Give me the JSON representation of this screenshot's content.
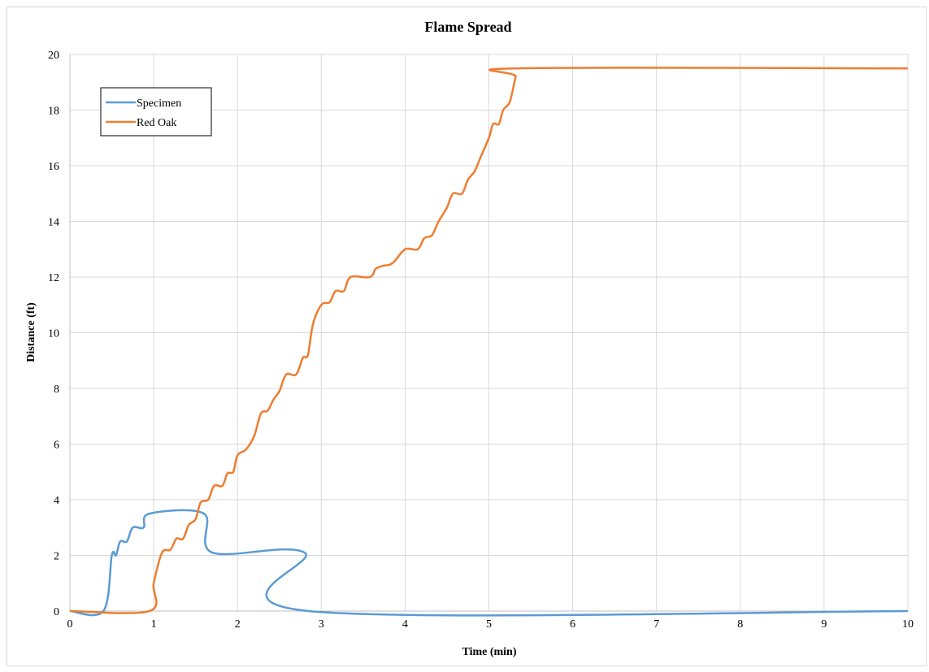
{
  "chart_data": {
    "type": "line",
    "title": "Flame Spread",
    "xlabel": "Time (min)",
    "ylabel": "Distance (ft)",
    "xlim": [
      0,
      10
    ],
    "ylim": [
      0,
      20
    ],
    "x_ticks": [
      0,
      1,
      2,
      3,
      4,
      5,
      6,
      7,
      8,
      9,
      10
    ],
    "y_ticks": [
      0,
      2,
      4,
      6,
      8,
      10,
      12,
      14,
      16,
      18,
      20
    ],
    "grid": true,
    "legend": "top-left",
    "series": [
      {
        "name": "Specimen",
        "color": "#5b9bd5",
        "points": [
          [
            0,
            0
          ],
          [
            0.4,
            0
          ],
          [
            0.5,
            2.0
          ],
          [
            0.55,
            2.0
          ],
          [
            0.6,
            2.5
          ],
          [
            0.68,
            2.5
          ],
          [
            0.75,
            3.0
          ],
          [
            0.88,
            3.0
          ],
          [
            0.95,
            3.5
          ],
          [
            1.6,
            3.5
          ],
          [
            1.7,
            2.1
          ],
          [
            2.8,
            2.1
          ],
          [
            2.85,
            0
          ],
          [
            10,
            0
          ]
        ]
      },
      {
        "name": "Red Oak",
        "color": "#ed7d31",
        "points": [
          [
            0,
            0
          ],
          [
            0.95,
            0
          ],
          [
            1.0,
            1.0
          ],
          [
            1.1,
            2.1
          ],
          [
            1.2,
            2.2
          ],
          [
            1.27,
            2.6
          ],
          [
            1.35,
            2.6
          ],
          [
            1.42,
            3.1
          ],
          [
            1.5,
            3.3
          ],
          [
            1.56,
            3.9
          ],
          [
            1.65,
            4.0
          ],
          [
            1.72,
            4.5
          ],
          [
            1.82,
            4.5
          ],
          [
            1.88,
            4.95
          ],
          [
            1.95,
            5.0
          ],
          [
            2.0,
            5.6
          ],
          [
            2.1,
            5.8
          ],
          [
            2.2,
            6.3
          ],
          [
            2.28,
            7.1
          ],
          [
            2.36,
            7.2
          ],
          [
            2.43,
            7.6
          ],
          [
            2.5,
            7.9
          ],
          [
            2.58,
            8.5
          ],
          [
            2.7,
            8.5
          ],
          [
            2.78,
            9.1
          ],
          [
            2.84,
            9.2
          ],
          [
            2.9,
            10.3
          ],
          [
            3.0,
            11.0
          ],
          [
            3.1,
            11.1
          ],
          [
            3.17,
            11.5
          ],
          [
            3.27,
            11.5
          ],
          [
            3.35,
            12.0
          ],
          [
            3.58,
            12.0
          ],
          [
            3.65,
            12.3
          ],
          [
            3.73,
            12.4
          ],
          [
            3.85,
            12.5
          ],
          [
            4.0,
            13.0
          ],
          [
            4.15,
            13.0
          ],
          [
            4.23,
            13.4
          ],
          [
            4.32,
            13.5
          ],
          [
            4.4,
            14.0
          ],
          [
            4.5,
            14.5
          ],
          [
            4.57,
            15.0
          ],
          [
            4.68,
            15.0
          ],
          [
            4.75,
            15.5
          ],
          [
            4.83,
            15.8
          ],
          [
            4.9,
            16.3
          ],
          [
            5.0,
            17.0
          ],
          [
            5.05,
            17.5
          ],
          [
            5.12,
            17.5
          ],
          [
            5.17,
            18.0
          ],
          [
            5.25,
            18.3
          ],
          [
            5.32,
            19.2
          ],
          [
            5.36,
            19.5
          ],
          [
            10,
            19.5
          ]
        ]
      }
    ]
  }
}
